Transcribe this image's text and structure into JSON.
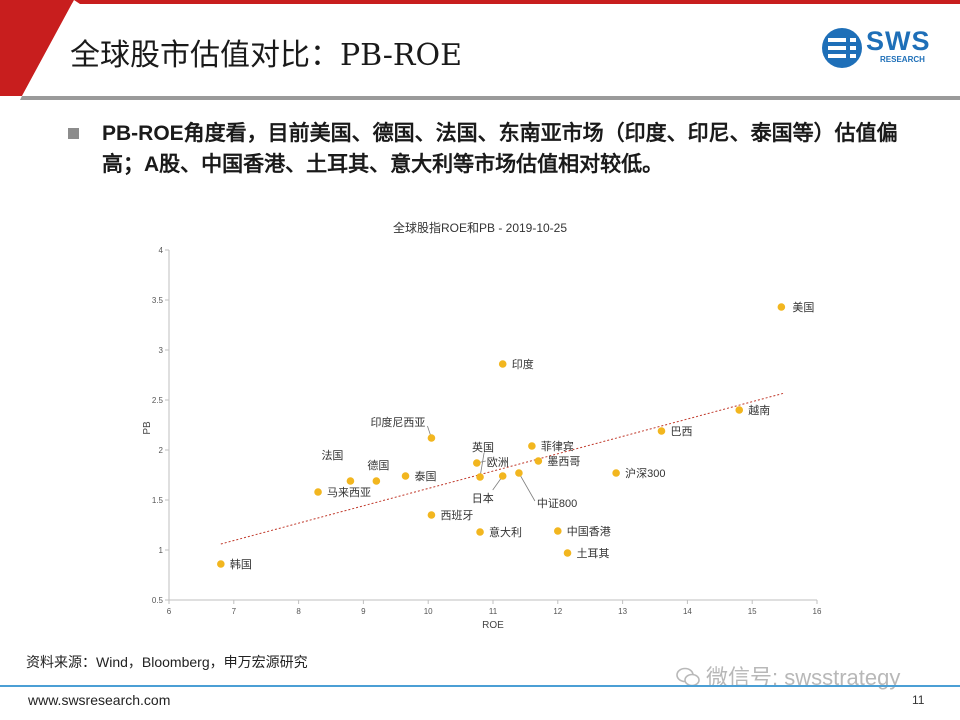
{
  "header": {
    "title": "全球股市估值对比：PB-ROE",
    "logo_text": "SWS",
    "logo_sub": "RESEARCH"
  },
  "bullet": {
    "text": "PB-ROE角度看，目前美国、德国、法国、东南亚市场（印度、印尼、泰国等）估值偏高；A股、中国香港、土耳其、意大利等市场估值相对较低。"
  },
  "chart_data": {
    "type": "scatter",
    "title": "全球股指ROE和PB - 2019-10-25",
    "xlabel": "ROE",
    "ylabel": "PB",
    "xlim": [
      6,
      16
    ],
    "ylim": [
      0.5,
      4
    ],
    "xticks": [
      "6",
      "7",
      "8",
      "9",
      "10",
      "11",
      "12",
      "13",
      "14",
      "15",
      "16"
    ],
    "yticks": [
      "0.5",
      "1",
      "1.5",
      "2",
      "2.5",
      "3",
      "3.5",
      "4"
    ],
    "point_color": "#f2b61f",
    "trend_color": "#c0392b",
    "trendline": [
      [
        6.8,
        1.06
      ],
      [
        15.5,
        2.57
      ]
    ],
    "points": [
      {
        "label": "美国",
        "x": 15.45,
        "y": 3.43
      },
      {
        "label": "印度",
        "x": 11.15,
        "y": 2.86
      },
      {
        "label": "越南",
        "x": 14.8,
        "y": 2.4
      },
      {
        "label": "巴西",
        "x": 13.6,
        "y": 2.19
      },
      {
        "label": "印度尼西亚",
        "x": 10.05,
        "y": 2.12
      },
      {
        "label": "菲律宾",
        "x": 11.6,
        "y": 2.04
      },
      {
        "label": "欧洲",
        "x": 10.75,
        "y": 1.87
      },
      {
        "label": "墨西哥",
        "x": 11.7,
        "y": 1.89
      },
      {
        "label": "英国",
        "x": 10.8,
        "y": 1.73
      },
      {
        "label": "日本",
        "x": 11.15,
        "y": 1.74
      },
      {
        "label": "中证800",
        "x": 11.4,
        "y": 1.77
      },
      {
        "label": "沪深300",
        "x": 12.9,
        "y": 1.77
      },
      {
        "label": "泰国",
        "x": 9.65,
        "y": 1.74
      },
      {
        "label": "法国",
        "x": 8.8,
        "y": 1.69
      },
      {
        "label": "德国",
        "x": 9.2,
        "y": 1.69
      },
      {
        "label": "马来西亚",
        "x": 8.3,
        "y": 1.58
      },
      {
        "label": "西班牙",
        "x": 10.05,
        "y": 1.35
      },
      {
        "label": "中国香港",
        "x": 12.0,
        "y": 1.19
      },
      {
        "label": "意大利",
        "x": 10.8,
        "y": 1.18
      },
      {
        "label": "土耳其",
        "x": 12.15,
        "y": 0.97
      },
      {
        "label": "韩国",
        "x": 6.8,
        "y": 0.86
      }
    ]
  },
  "footer": {
    "source": "资料来源：Wind，Bloomberg，申万宏源研究",
    "wechat": "微信号: swsstrategy",
    "url": "www.swsresearch.com",
    "page": "11"
  }
}
